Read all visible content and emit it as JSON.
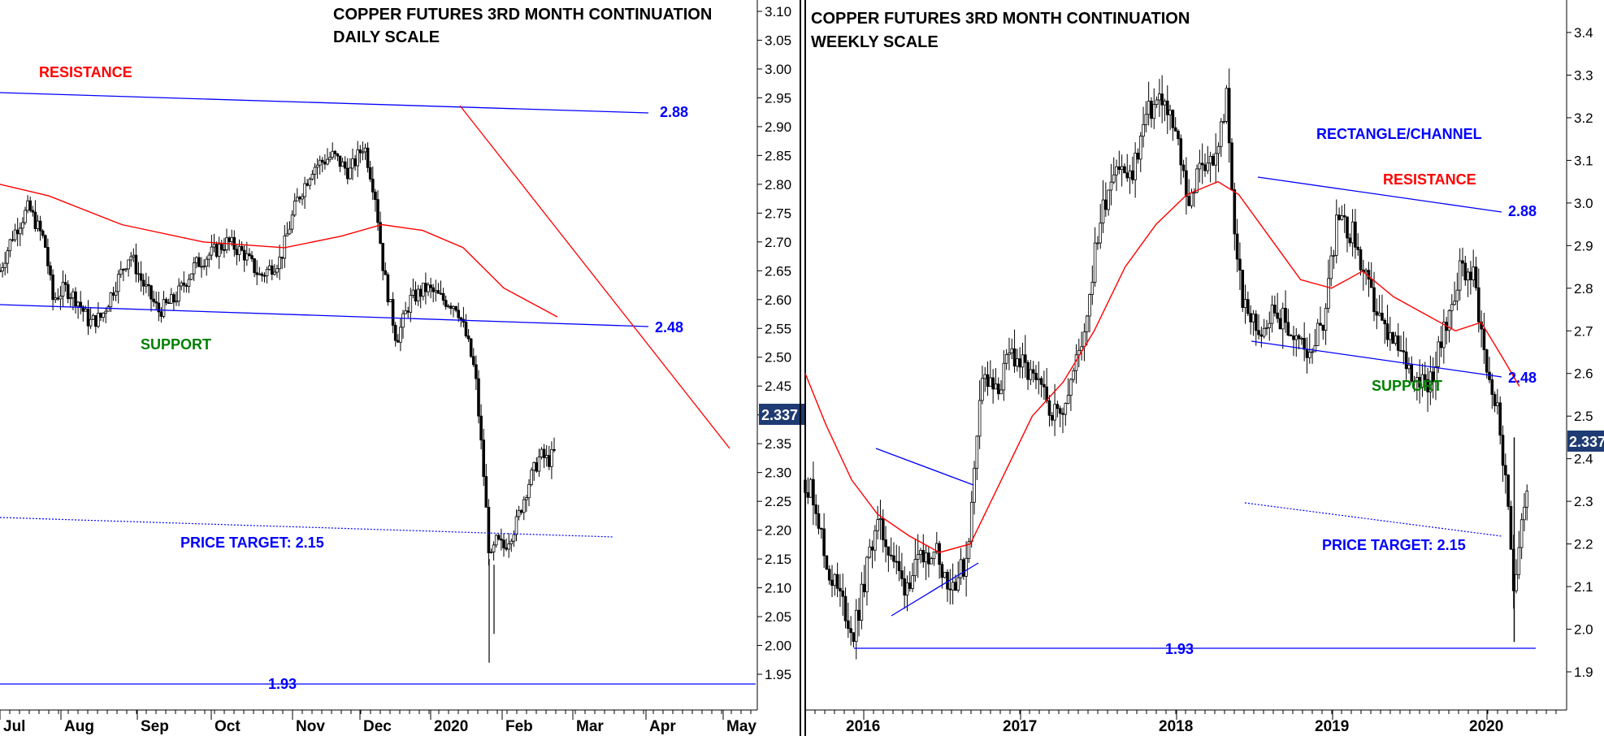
{
  "chart_data": [
    {
      "type": "candlestick",
      "title": "COPPER FUTURES 3RD MONTH CONTINUATION",
      "subtitle": "DAILY SCALE",
      "last_price": "2.337",
      "y_ticks": [
        "3.10",
        "3.05",
        "3.00",
        "2.95",
        "2.90",
        "2.85",
        "2.80",
        "2.75",
        "2.70",
        "2.65",
        "2.60",
        "2.55",
        "2.50",
        "2.45",
        "2.40",
        "2.35",
        "2.30",
        "2.25",
        "2.20",
        "2.15",
        "2.10",
        "2.05",
        "2.00",
        "1.95"
      ],
      "ylim": [
        1.93,
        3.12
      ],
      "x_labels": [
        "Jul",
        "Aug",
        "Sep",
        "Oct",
        "Nov",
        "Dec",
        "2020",
        "Feb",
        "Mar",
        "Apr",
        "May"
      ],
      "price_path": [
        {
          "x": 0,
          "y": 2.65
        },
        {
          "x": 15,
          "y": 2.71
        },
        {
          "x": 35,
          "y": 2.76
        },
        {
          "x": 55,
          "y": 2.7
        },
        {
          "x": 65,
          "y": 2.6
        },
        {
          "x": 80,
          "y": 2.62
        },
        {
          "x": 95,
          "y": 2.6
        },
        {
          "x": 110,
          "y": 2.56
        },
        {
          "x": 125,
          "y": 2.57
        },
        {
          "x": 140,
          "y": 2.62
        },
        {
          "x": 160,
          "y": 2.68
        },
        {
          "x": 175,
          "y": 2.63
        },
        {
          "x": 195,
          "y": 2.58
        },
        {
          "x": 215,
          "y": 2.6
        },
        {
          "x": 240,
          "y": 2.66
        },
        {
          "x": 260,
          "y": 2.68
        },
        {
          "x": 280,
          "y": 2.7
        },
        {
          "x": 300,
          "y": 2.68
        },
        {
          "x": 320,
          "y": 2.64
        },
        {
          "x": 345,
          "y": 2.67
        },
        {
          "x": 365,
          "y": 2.77
        },
        {
          "x": 385,
          "y": 2.83
        },
        {
          "x": 410,
          "y": 2.85
        },
        {
          "x": 430,
          "y": 2.82
        },
        {
          "x": 448,
          "y": 2.87
        },
        {
          "x": 462,
          "y": 2.78
        },
        {
          "x": 472,
          "y": 2.65
        },
        {
          "x": 488,
          "y": 2.53
        },
        {
          "x": 505,
          "y": 2.6
        },
        {
          "x": 525,
          "y": 2.62
        },
        {
          "x": 545,
          "y": 2.6
        },
        {
          "x": 562,
          "y": 2.59
        },
        {
          "x": 575,
          "y": 2.53
        },
        {
          "x": 585,
          "y": 2.47
        },
        {
          "x": 595,
          "y": 2.3
        },
        {
          "x": 603,
          "y": 2.14
        },
        {
          "x": 610,
          "y": 2.18
        },
        {
          "x": 620,
          "y": 2.17
        },
        {
          "x": 635,
          "y": 2.21
        },
        {
          "x": 650,
          "y": 2.28
        },
        {
          "x": 665,
          "y": 2.33
        },
        {
          "x": 675,
          "y": 2.32
        },
        {
          "x": 685,
          "y": 2.34
        }
      ],
      "moving_average": [
        {
          "x": 0,
          "y": 2.8
        },
        {
          "x": 60,
          "y": 2.78
        },
        {
          "x": 150,
          "y": 2.73
        },
        {
          "x": 250,
          "y": 2.7
        },
        {
          "x": 350,
          "y": 2.69
        },
        {
          "x": 420,
          "y": 2.71
        },
        {
          "x": 470,
          "y": 2.73
        },
        {
          "x": 520,
          "y": 2.72
        },
        {
          "x": 570,
          "y": 2.69
        },
        {
          "x": 620,
          "y": 2.62
        },
        {
          "x": 686,
          "y": 2.57
        }
      ],
      "annotations": [
        {
          "text": "RESISTANCE",
          "color": "#ff0000"
        },
        {
          "text": "2.88",
          "color": "#0000ff"
        },
        {
          "text": "SUPPORT",
          "color": "#008000"
        },
        {
          "text": "2.48",
          "color": "#0000ff"
        },
        {
          "text": "PRICE TARGET: 2.15",
          "color": "#0000ff"
        },
        {
          "text": "1.93",
          "color": "#0000ff"
        }
      ]
    },
    {
      "type": "candlestick",
      "title": "COPPER FUTURES 3RD MONTH CONTINUATION",
      "subtitle": "WEEKLY SCALE",
      "last_price": "2.337",
      "y_ticks": [
        "3.4",
        "3.3",
        "3.2",
        "3.1",
        "3.0",
        "2.9",
        "2.8",
        "2.7",
        "2.6",
        "2.5",
        "2.4",
        "2.3",
        "2.2",
        "2.1",
        "2.0",
        "1.9"
      ],
      "ylim": [
        1.83,
        3.52
      ],
      "x_labels": [
        "2016",
        "2017",
        "2018",
        "2019",
        "2020"
      ],
      "price_path": [
        {
          "x": 0,
          "y": 2.35
        },
        {
          "x": 10,
          "y": 2.3
        },
        {
          "x": 20,
          "y": 2.15
        },
        {
          "x": 30,
          "y": 2.1
        },
        {
          "x": 38,
          "y": 2.05
        },
        {
          "x": 46,
          "y": 1.98
        },
        {
          "x": 55,
          "y": 2.08
        },
        {
          "x": 68,
          "y": 2.25
        },
        {
          "x": 80,
          "y": 2.2
        },
        {
          "x": 95,
          "y": 2.1
        },
        {
          "x": 110,
          "y": 2.15
        },
        {
          "x": 125,
          "y": 2.2
        },
        {
          "x": 140,
          "y": 2.1
        },
        {
          "x": 155,
          "y": 2.15
        },
        {
          "x": 162,
          "y": 2.3
        },
        {
          "x": 170,
          "y": 2.6
        },
        {
          "x": 185,
          "y": 2.55
        },
        {
          "x": 200,
          "y": 2.65
        },
        {
          "x": 215,
          "y": 2.6
        },
        {
          "x": 230,
          "y": 2.55
        },
        {
          "x": 245,
          "y": 2.5
        },
        {
          "x": 260,
          "y": 2.6
        },
        {
          "x": 270,
          "y": 2.7
        },
        {
          "x": 285,
          "y": 2.95
        },
        {
          "x": 300,
          "y": 3.1
        },
        {
          "x": 315,
          "y": 3.05
        },
        {
          "x": 330,
          "y": 3.2
        },
        {
          "x": 345,
          "y": 3.25
        },
        {
          "x": 360,
          "y": 3.15
        },
        {
          "x": 372,
          "y": 3.0
        },
        {
          "x": 385,
          "y": 3.1
        },
        {
          "x": 398,
          "y": 3.1
        },
        {
          "x": 408,
          "y": 3.25
        },
        {
          "x": 415,
          "y": 2.95
        },
        {
          "x": 425,
          "y": 2.75
        },
        {
          "x": 440,
          "y": 2.7
        },
        {
          "x": 455,
          "y": 2.75
        },
        {
          "x": 470,
          "y": 2.7
        },
        {
          "x": 485,
          "y": 2.65
        },
        {
          "x": 500,
          "y": 2.7
        },
        {
          "x": 515,
          "y": 2.95
        },
        {
          "x": 530,
          "y": 2.93
        },
        {
          "x": 545,
          "y": 2.8
        },
        {
          "x": 560,
          "y": 2.7
        },
        {
          "x": 575,
          "y": 2.65
        },
        {
          "x": 590,
          "y": 2.6
        },
        {
          "x": 605,
          "y": 2.58
        },
        {
          "x": 620,
          "y": 2.7
        },
        {
          "x": 635,
          "y": 2.85
        },
        {
          "x": 648,
          "y": 2.83
        },
        {
          "x": 660,
          "y": 2.62
        },
        {
          "x": 672,
          "y": 2.5
        },
        {
          "x": 680,
          "y": 2.3
        },
        {
          "x": 687,
          "y": 2.1
        },
        {
          "x": 693,
          "y": 2.25
        },
        {
          "x": 700,
          "y": 2.33
        }
      ],
      "moving_average": [
        {
          "x": 0,
          "y": 2.6
        },
        {
          "x": 20,
          "y": 2.48
        },
        {
          "x": 45,
          "y": 2.35
        },
        {
          "x": 70,
          "y": 2.27
        },
        {
          "x": 100,
          "y": 2.22
        },
        {
          "x": 130,
          "y": 2.18
        },
        {
          "x": 160,
          "y": 2.2
        },
        {
          "x": 190,
          "y": 2.35
        },
        {
          "x": 220,
          "y": 2.5
        },
        {
          "x": 250,
          "y": 2.58
        },
        {
          "x": 280,
          "y": 2.7
        },
        {
          "x": 310,
          "y": 2.85
        },
        {
          "x": 340,
          "y": 2.95
        },
        {
          "x": 370,
          "y": 3.02
        },
        {
          "x": 400,
          "y": 3.05
        },
        {
          "x": 420,
          "y": 3.02
        },
        {
          "x": 450,
          "y": 2.92
        },
        {
          "x": 480,
          "y": 2.82
        },
        {
          "x": 510,
          "y": 2.8
        },
        {
          "x": 540,
          "y": 2.84
        },
        {
          "x": 570,
          "y": 2.78
        },
        {
          "x": 600,
          "y": 2.74
        },
        {
          "x": 630,
          "y": 2.7
        },
        {
          "x": 655,
          "y": 2.72
        },
        {
          "x": 675,
          "y": 2.64
        },
        {
          "x": 692,
          "y": 2.57
        }
      ],
      "annotations": [
        {
          "text": "RECTANGLE/CHANNEL",
          "color": "#0000ff"
        },
        {
          "text": "RESISTANCE",
          "color": "#ff0000"
        },
        {
          "text": "2.88",
          "color": "#0000ff"
        },
        {
          "text": "SUPPORT",
          "color": "#008000"
        },
        {
          "text": "2.48",
          "color": "#0000ff"
        },
        {
          "text": "PRICE TARGET: 2.15",
          "color": "#0000ff"
        },
        {
          "text": "1.93",
          "color": "#0000ff"
        }
      ]
    }
  ],
  "colors": {
    "candle": "#000000",
    "moving_average": "#ff0000",
    "trend_line": "#0000ff",
    "last_price_badge": "#1f3b73"
  }
}
